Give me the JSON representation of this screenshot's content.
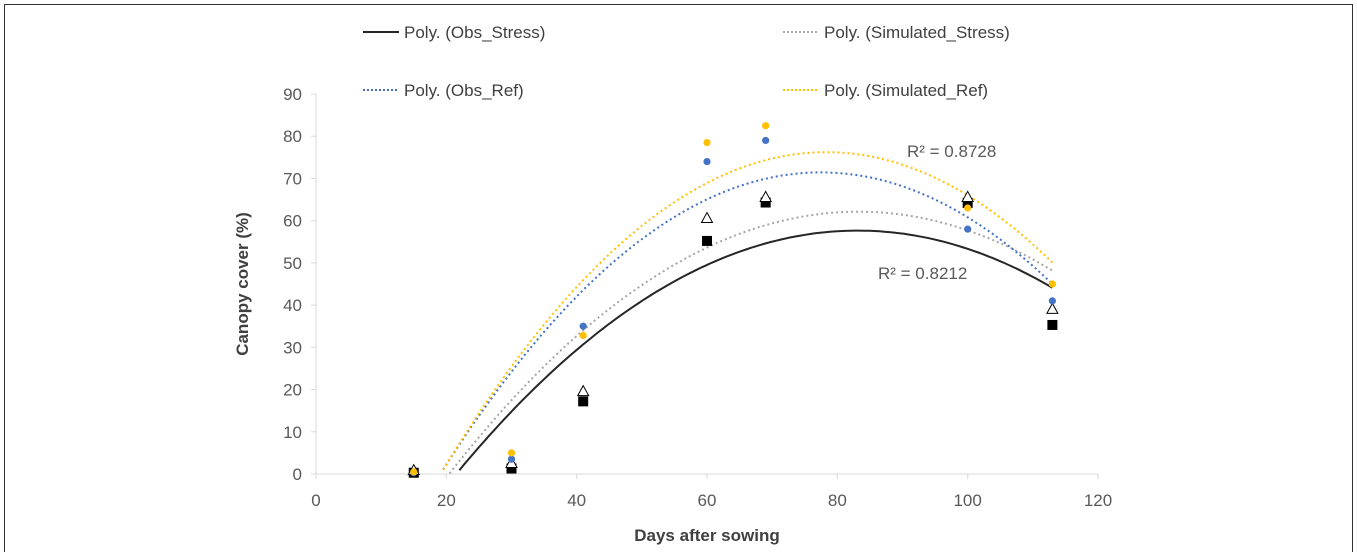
{
  "chart_data": {
    "type": "scatter",
    "xlabel": "Days after sowing",
    "ylabel": "Canopy cover (%)",
    "xlim": [
      0,
      120
    ],
    "ylim": [
      0,
      90
    ],
    "xticks": [
      0,
      20,
      40,
      60,
      80,
      100,
      120
    ],
    "yticks": [
      0,
      10,
      20,
      30,
      40,
      50,
      60,
      70,
      80,
      90
    ],
    "grid": false,
    "legend_position": "top",
    "legend": [
      {
        "label": "Poly. (Obs_Stress)",
        "style": "solid",
        "color": "#262626"
      },
      {
        "label": "Poly. (Simulated_Stress)",
        "style": "dotted",
        "color": "#a6a6a6"
      },
      {
        "label": "Poly. (Obs_Ref)",
        "style": "dotted",
        "color": "#4472c4"
      },
      {
        "label": "Poly. (Simulated_Ref)",
        "style": "dotted",
        "color": "#ffc000"
      }
    ],
    "series": [
      {
        "marker": "square",
        "color": "#000000",
        "x": [
          15,
          30,
          41,
          60,
          69,
          100,
          113
        ],
        "y": [
          0.3,
          1.3,
          17.2,
          55.2,
          64.3,
          64.2,
          35.3
        ],
        "trendline": {
          "coeffs": [
            -47.27,
            2.524,
            -0.01518
          ],
          "x_range": [
            22,
            113
          ]
        }
      },
      {
        "marker": "triangle-open",
        "color": "#000000",
        "x": [
          15,
          30,
          41,
          60,
          69,
          100,
          113
        ],
        "y": [
          0.8,
          2.5,
          19.5,
          60.5,
          65.5,
          65.5,
          39.0
        ],
        "trendline": {
          "coeffs": [
            -47.0,
            2.622,
            -0.01575
          ],
          "x_range": [
            20.5,
            113
          ]
        }
      },
      {
        "marker": "circle",
        "color": "#4472c4",
        "x": [
          15,
          30,
          41,
          60,
          69,
          100,
          113
        ],
        "y": [
          0.3,
          3.5,
          35.0,
          74.0,
          79.0,
          58.0,
          41.0
        ],
        "trendline": {
          "coeffs": [
            -54.3,
            3.246,
            -0.02095
          ],
          "x_range": [
            19.5,
            113
          ]
        }
      },
      {
        "marker": "circle",
        "color": "#ffc000",
        "x": [
          15,
          30,
          41,
          60,
          69,
          100,
          113
        ],
        "y": [
          0.5,
          5.0,
          32.8,
          78.5,
          82.5,
          63.0,
          45.0
        ],
        "trendline": {
          "coeffs": [
            -57.2,
            3.407,
            -0.02175
          ],
          "x_range": [
            19.5,
            113
          ]
        }
      }
    ],
    "annotations": [
      {
        "text": "R² = 0.8728"
      },
      {
        "text": "R² = 0.8212"
      }
    ]
  }
}
